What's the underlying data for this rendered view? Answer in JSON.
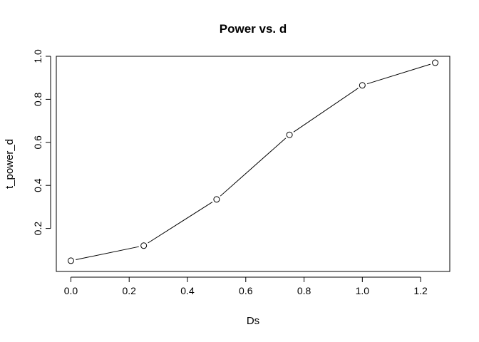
{
  "chart_data": {
    "type": "line",
    "title": "Power vs. d",
    "xlabel": "Ds",
    "ylabel": "t_power_d",
    "x": [
      0.0,
      0.25,
      0.5,
      0.75,
      1.0,
      1.25
    ],
    "y": [
      0.05,
      0.12,
      0.335,
      0.635,
      0.865,
      0.97
    ],
    "xlim": [
      -0.05,
      1.3
    ],
    "ylim": [
      0.0,
      1.0
    ],
    "xticks": [
      0.0,
      0.2,
      0.4,
      0.6,
      0.8,
      1.0,
      1.2
    ],
    "xtick_labels": [
      "0.0",
      "0.2",
      "0.4",
      "0.6",
      "0.8",
      "1.0",
      "1.2"
    ],
    "yticks": [
      0.2,
      0.4,
      0.6,
      0.8,
      1.0
    ],
    "ytick_labels": [
      "0.2",
      "0.4",
      "0.6",
      "0.8",
      "1.0"
    ],
    "marker": "open-circle",
    "line_color": "#000000",
    "grid": false,
    "legend": "none"
  }
}
